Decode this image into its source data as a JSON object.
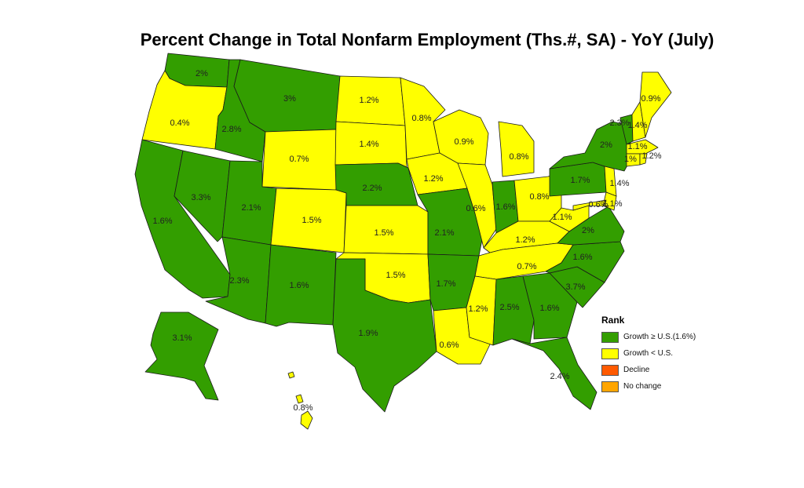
{
  "title": "Percent Change in Total Nonfarm Employment (Ths.#, SA) - YoY (July)",
  "colors": {
    "above": "#339e00",
    "below": "#ffff00",
    "decline": "#ff5a00",
    "nochange": "#ffa500"
  },
  "legend": {
    "title": "Rank",
    "items": [
      {
        "key": "above",
        "label": "Growth ≥ U.S.(1.6%)"
      },
      {
        "key": "below",
        "label": "Growth < U.S."
      },
      {
        "key": "decline",
        "label": "Decline"
      },
      {
        "key": "nochange",
        "label": "No change"
      }
    ]
  },
  "states": [
    {
      "id": "WA",
      "value": "2%",
      "cat": "above"
    },
    {
      "id": "OR",
      "value": "0.4%",
      "cat": "below"
    },
    {
      "id": "CA",
      "value": "1.6%",
      "cat": "above"
    },
    {
      "id": "ID",
      "value": "2.8%",
      "cat": "above"
    },
    {
      "id": "NV",
      "value": "3.3%",
      "cat": "above"
    },
    {
      "id": "MT",
      "value": "3%",
      "cat": "above"
    },
    {
      "id": "WY",
      "value": "0.7%",
      "cat": "below"
    },
    {
      "id": "UT",
      "value": "2.1%",
      "cat": "above"
    },
    {
      "id": "AZ",
      "value": "2.3%",
      "cat": "above"
    },
    {
      "id": "CO",
      "value": "1.5%",
      "cat": "below"
    },
    {
      "id": "NM",
      "value": "1.6%",
      "cat": "above"
    },
    {
      "id": "ND",
      "value": "1.2%",
      "cat": "below"
    },
    {
      "id": "SD",
      "value": "1.4%",
      "cat": "below"
    },
    {
      "id": "NE",
      "value": "2.2%",
      "cat": "above"
    },
    {
      "id": "KS",
      "value": "1.5%",
      "cat": "below"
    },
    {
      "id": "OK",
      "value": "1.5%",
      "cat": "below"
    },
    {
      "id": "TX",
      "value": "1.9%",
      "cat": "above"
    },
    {
      "id": "MN",
      "value": "0.8%",
      "cat": "below"
    },
    {
      "id": "IA",
      "value": "1.2%",
      "cat": "below"
    },
    {
      "id": "MO",
      "value": "2.1%",
      "cat": "above"
    },
    {
      "id": "AR",
      "value": "1.7%",
      "cat": "above"
    },
    {
      "id": "LA",
      "value": "0.6%",
      "cat": "below"
    },
    {
      "id": "WI",
      "value": "0.9%",
      "cat": "below"
    },
    {
      "id": "IL",
      "value": "0.6%",
      "cat": "below"
    },
    {
      "id": "MI",
      "value": "0.8%",
      "cat": "below"
    },
    {
      "id": "IN",
      "value": "1.6%",
      "cat": "above"
    },
    {
      "id": "OH",
      "value": "0.8%",
      "cat": "below"
    },
    {
      "id": "KY",
      "value": "1.2%",
      "cat": "below"
    },
    {
      "id": "TN",
      "value": "0.7%",
      "cat": "below"
    },
    {
      "id": "MS",
      "value": "1.2%",
      "cat": "below"
    },
    {
      "id": "AL",
      "value": "2.5%",
      "cat": "above"
    },
    {
      "id": "GA",
      "value": "1.6%",
      "cat": "above"
    },
    {
      "id": "FL",
      "value": "2.4%",
      "cat": "above"
    },
    {
      "id": "SC",
      "value": "3.7%",
      "cat": "above"
    },
    {
      "id": "NC",
      "value": "1.6%",
      "cat": "above"
    },
    {
      "id": "VA",
      "value": "2%",
      "cat": "above"
    },
    {
      "id": "WV",
      "value": "1.1%",
      "cat": "below"
    },
    {
      "id": "PA",
      "value": "1.7%",
      "cat": "above"
    },
    {
      "id": "NY",
      "value": "2%",
      "cat": "above"
    },
    {
      "id": "NJ",
      "value": "1.4%",
      "cat": "below"
    },
    {
      "id": "DE",
      "value": "1.1%",
      "cat": "below"
    },
    {
      "id": "MD",
      "value": "0.6%",
      "cat": "below"
    },
    {
      "id": "VT",
      "value": "2.3%",
      "cat": "above"
    },
    {
      "id": "NH",
      "value": "1.4%",
      "cat": "below"
    },
    {
      "id": "ME",
      "value": "0.9%",
      "cat": "below"
    },
    {
      "id": "MA",
      "value": "1.1%",
      "cat": "below"
    },
    {
      "id": "CT",
      "value": "1%",
      "cat": "below"
    },
    {
      "id": "RI",
      "value": "1.2%",
      "cat": "below"
    },
    {
      "id": "AK",
      "value": "3.1%",
      "cat": "above"
    },
    {
      "id": "HI",
      "value": "0.8%",
      "cat": "below"
    }
  ]
}
